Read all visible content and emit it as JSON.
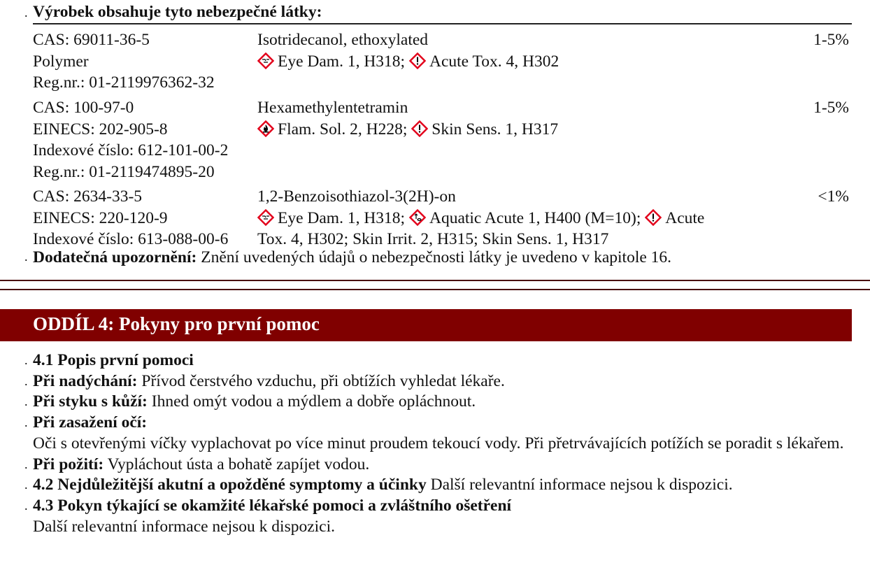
{
  "section3": {
    "heading": "Výrobek obsahuje tyto nebezpečné látky:",
    "substances": [
      {
        "ids": [
          "CAS: 69011-36-5",
          "Polymer",
          "Reg.nr.: 01-2119976362-32"
        ],
        "name": "Isotridecanol, ethoxylated",
        "hazard_lines": [
          [
            {
              "icon": "ghs05-corrosion",
              "text": "Eye Dam. 1, H318;"
            },
            {
              "icon": "ghs07-exclamation",
              "text": "Acute Tox. 4, H302"
            }
          ]
        ],
        "percent": "1-5%"
      },
      {
        "ids": [
          "CAS: 100-97-0",
          "EINECS: 202-905-8",
          "Indexové číslo: 612-101-00-2",
          "Reg.nr.: 01-2119474895-20"
        ],
        "name": "Hexamethylentetramin",
        "hazard_lines": [
          [
            {
              "icon": "ghs02-flame",
              "text": "Flam. Sol. 2, H228;"
            },
            {
              "icon": "ghs07-exclamation",
              "text": "Skin Sens. 1, H317"
            }
          ]
        ],
        "percent": "1-5%"
      },
      {
        "ids": [
          "CAS: 2634-33-5",
          "EINECS: 220-120-9",
          "Indexové číslo: 613-088-00-6"
        ],
        "name": "1,2-Benzoisothiazol-3(2H)-on",
        "hazard_lines": [
          [
            {
              "icon": "ghs05-corrosion",
              "text": "Eye Dam. 1, H318;"
            },
            {
              "icon": "ghs09-environment",
              "text": "Aquatic Acute 1, H400 (M=10);"
            },
            {
              "icon": "ghs07-exclamation",
              "text": "Acute"
            }
          ],
          [
            {
              "icon": "",
              "text": "Tox. 4, H302; Skin Irrit. 2, H315; Skin Sens. 1, H317"
            }
          ]
        ],
        "percent": "<1%"
      }
    ],
    "note_label": "Dodatečná upozornění:",
    "note_text": "Znění uvedených údajů o nebezpečnosti látky je uvedeno v kapitole 16."
  },
  "section4": {
    "banner": "ODDÍL 4: Pokyny pro první pomoc",
    "items": [
      {
        "dot": true,
        "label": "4.1 Popis první pomoci",
        "text": ""
      },
      {
        "dot": true,
        "label": "Při nadýchání:",
        "text": "Přívod čerstvého vzduchu, při obtížích vyhledat lékaře."
      },
      {
        "dot": true,
        "label": "Při styku s kůží:",
        "text": "Ihned omýt vodou a mýdlem a dobře opláchnout."
      },
      {
        "dot": true,
        "label": "Při zasažení očí:",
        "text": ""
      },
      {
        "dot": false,
        "label": "",
        "text": "Oči s otevřenými víčky vyplachovat po více minut proudem tekoucí vody. Při přetrvávajících potížích se poradit s lékařem.",
        "justify": true
      },
      {
        "dot": true,
        "label": "Při požití:",
        "text": "Vypláchout ústa a bohatě zapíjet vodou."
      },
      {
        "dot": true,
        "label": "4.2 Nejdůležitější akutní a opožděné symptomy a účinky",
        "text": "Další relevantní informace nejsou k dispozici."
      },
      {
        "dot": true,
        "label": "4.3 Pokyn týkající se okamžité lékařské pomoci a zvláštního ošetření",
        "text": ""
      },
      {
        "dot": false,
        "label": "",
        "text": "Další relevantní informace nejsou k dispozici."
      }
    ]
  },
  "colors": {
    "banner": "#800000",
    "pictogram_border": "#e2001a"
  }
}
